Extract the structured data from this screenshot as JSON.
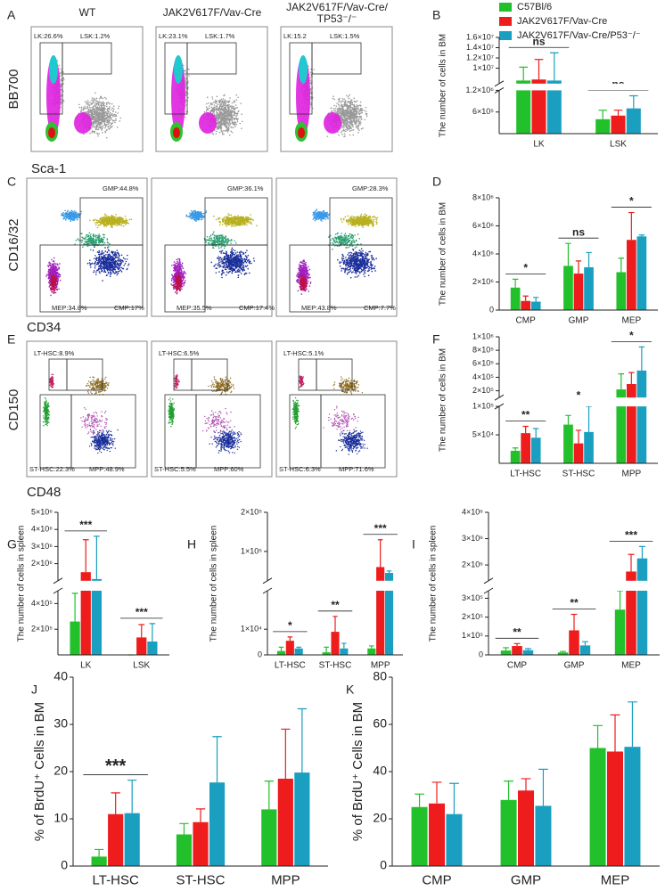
{
  "columns": [
    [
      "WT"
    ],
    [
      "JAK2V617F/Vav-Cre"
    ],
    [
      "JAK2V617F/Vav-Cre/",
      "TP53⁻/⁻"
    ]
  ],
  "groups": [
    {
      "name": "C57Bl/6",
      "color": "#22c02a"
    },
    {
      "name": "JAK2V617F/Vav-Cre",
      "color": "#ee1c1c"
    },
    {
      "name": "JAK2V617F/Vav-Cre/P53⁻/⁻",
      "color": "#1a9fc0"
    }
  ],
  "flow_rows": [
    {
      "panel": "A",
      "x_label": "Sca-1",
      "y_label": "BB700",
      "gates": [
        [
          "LK:26.6%",
          "LSK:1.2%"
        ],
        [
          "LK:23.1%",
          "LSK:1.7%"
        ],
        [
          "LK:15.2",
          "LSK:1.5%"
        ]
      ]
    },
    {
      "panel": "C",
      "x_label": "CD34",
      "y_label": "CD16/32",
      "gates": [
        [
          "GMP:44.8%",
          "MEP:34.8%",
          "CMP:17%"
        ],
        [
          "GMP:36.1%",
          "MEP:35.5%",
          "CMP:17.4%"
        ],
        [
          "GMP:28.3%",
          "MEP:43.8%",
          "CMP:7.7%"
        ]
      ]
    },
    {
      "panel": "E",
      "x_label": "CD48",
      "y_label": "CD150",
      "gates": [
        [
          "LT-HSC:8.9%",
          "ST-HSC:22.3%",
          "MPP:48.9%"
        ],
        [
          "LT-HSC:6.5%",
          "ST-HSC:5.5%",
          "MPP:60%"
        ],
        [
          "LT-HSC:5.1%",
          "ST-HSC:6.3%",
          "MPP:71.6%"
        ]
      ]
    }
  ],
  "chart_data": [
    {
      "type": "bar",
      "panel": "B",
      "y_label": "The number of cells in BM",
      "categories": [
        "LK",
        "LSK"
      ],
      "segments": [
        {
          "ylim": [
            0,
            1200000
          ],
          "yticks": [
            {
              "value": 600000,
              "label": "6×10⁵"
            },
            {
              "value": 1200000,
              "label": "1.2×10⁶"
            }
          ]
        },
        {
          "ylim": [
            7000000,
            16000000
          ],
          "yticks": [
            {
              "value": 10000000,
              "label": "1×10⁷"
            },
            {
              "value": 12000000,
              "label": "1.2×10⁷"
            },
            {
              "value": 14000000,
              "label": "1.4×10⁷"
            },
            {
              "value": 16000000,
              "label": "1.6×10⁷"
            }
          ]
        }
      ],
      "series": [
        {
          "values": [
            7600000,
            400000
          ],
          "errors": [
            2600000,
            250000
          ]
        },
        {
          "values": [
            7800000,
            500000
          ],
          "errors": [
            3900000,
            150000
          ]
        },
        {
          "values": [
            7600000,
            700000
          ],
          "errors": [
            5400000,
            350000
          ]
        }
      ],
      "significance": [
        "ns",
        "ns"
      ]
    },
    {
      "type": "bar",
      "panel": "D",
      "y_label": "The number of cells in BM",
      "categories": [
        "CMP",
        "GMP",
        "MEP"
      ],
      "ylim": [
        0,
        8000000
      ],
      "yticks": [
        0,
        {
          "value": 2000000,
          "label": "2×10⁶"
        },
        {
          "value": 4000000,
          "label": "4×10⁶"
        },
        {
          "value": 6000000,
          "label": "6×10⁶"
        },
        {
          "value": 8000000,
          "label": "8×10⁶"
        }
      ],
      "series": [
        {
          "values": [
            1600000,
            3150000,
            2700000
          ],
          "errors": [
            600000,
            1600000,
            1000000
          ]
        },
        {
          "values": [
            650000,
            2600000,
            5000000
          ],
          "errors": [
            350000,
            900000,
            1950000
          ]
        },
        {
          "values": [
            600000,
            3050000,
            5250000
          ],
          "errors": [
            300000,
            1050000,
            100000
          ]
        }
      ],
      "significance": [
        "*",
        "ns",
        "*"
      ]
    },
    {
      "type": "bar",
      "panel": "F",
      "y_label": "The number of cells in BM",
      "categories": [
        "LT-HSC",
        "ST-HSC",
        "MPP"
      ],
      "segments": [
        {
          "ylim": [
            0,
            100000
          ],
          "yticks": [
            {
              "value": 50000,
              "label": "5×10⁴"
            },
            {
              "value": 100000,
              "label": "1×10⁵"
            }
          ]
        },
        {
          "ylim": [
            100000,
            1000000
          ],
          "yticks": [
            {
              "value": 200000,
              "label": "2×10⁵"
            },
            {
              "value": 400000,
              "label": "4×10⁵"
            },
            {
              "value": 600000,
              "label": "6×10⁵"
            },
            {
              "value": 800000,
              "label": "8×10⁵"
            },
            {
              "value": 1000000,
              "label": "1×10⁶"
            }
          ]
        }
      ],
      "series": [
        {
          "values": [
            22000,
            68000,
            220000
          ],
          "errors": [
            5000,
            16000,
            230000
          ]
        },
        {
          "values": [
            53000,
            35000,
            300000
          ],
          "errors": [
            12000,
            23000,
            170000
          ]
        },
        {
          "values": [
            45000,
            55000,
            500000
          ],
          "errors": [
            16000,
            45000,
            350000
          ]
        }
      ],
      "significance": [
        "**",
        "*",
        "*"
      ]
    },
    {
      "type": "bar",
      "panel": "G",
      "y_label": "The number of cells in spleen",
      "categories": [
        "LK",
        "LSK"
      ],
      "segments": [
        {
          "ylim": [
            0,
            500000
          ],
          "yticks": [
            {
              "value": 200000,
              "label": "2×10⁵"
            },
            {
              "value": 400000,
              "label": "4×10⁵"
            }
          ]
        },
        {
          "ylim": [
            1000000,
            5000000
          ],
          "yticks": [
            {
              "value": 2000000,
              "label": "2×10⁶"
            },
            {
              "value": 3000000,
              "label": "3×10⁶"
            },
            {
              "value": 4000000,
              "label": "4×10⁶"
            },
            {
              "value": 5000000,
              "label": "5×10⁶"
            }
          ]
        }
      ],
      "series": [
        {
          "values": [
            260000,
            0
          ],
          "errors": [
            220000,
            0
          ]
        },
        {
          "values": [
            1500000,
            136000
          ],
          "errors": [
            1900000,
            100000
          ]
        },
        {
          "values": [
            1100000,
            104000
          ],
          "errors": [
            2500000,
            140000
          ]
        }
      ],
      "significance": [
        "***",
        "***"
      ]
    },
    {
      "type": "bar",
      "panel": "H",
      "y_label": "The number of cells in spleen",
      "categories": [
        "LT-HSC",
        "ST-HSC",
        "MPP"
      ],
      "segments": [
        {
          "ylim": [
            0,
            25000
          ],
          "yticks": [
            0,
            {
              "value": 10000,
              "label": "1×10⁴"
            }
          ]
        },
        {
          "ylim": [
            25000,
            200000
          ],
          "yticks": [
            {
              "value": 100000,
              "label": "1×10⁵"
            },
            {
              "value": 200000,
              "label": "2×10⁵"
            }
          ]
        }
      ],
      "series": [
        {
          "values": [
            1500,
            1000,
            2500
          ],
          "errors": [
            1500,
            2000,
            1000
          ]
        },
        {
          "values": [
            5500,
            9000,
            60000
          ],
          "errors": [
            1500,
            6000,
            70000
          ]
        },
        {
          "values": [
            2500,
            2500,
            45000
          ],
          "errors": [
            500,
            2000,
            5000
          ]
        }
      ],
      "significance": [
        "*",
        "**",
        "***"
      ]
    },
    {
      "type": "bar",
      "panel": "I",
      "y_label": "The number of cells in spleen",
      "categories": [
        "CMP",
        "GMP",
        "MEP"
      ],
      "segments": [
        {
          "ylim": [
            0,
            340000
          ],
          "yticks": [
            0,
            {
              "value": 100000,
              "label": "1×10⁵"
            },
            {
              "value": 200000,
              "label": "2×10⁵"
            },
            {
              "value": 300000,
              "label": "3×10⁵"
            }
          ]
        },
        {
          "ylim": [
            1400000,
            4000000
          ],
          "yticks": [
            {
              "value": 2000000,
              "label": "2×10⁶"
            },
            {
              "value": 3000000,
              "label": "3×10⁶"
            },
            {
              "value": 4000000,
              "label": "4×10⁶"
            }
          ]
        }
      ],
      "series": [
        {
          "values": [
            23000,
            13000,
            240000
          ],
          "errors": [
            15000,
            5000,
            100000
          ]
        },
        {
          "values": [
            47000,
            130000,
            1750000
          ],
          "errors": [
            13000,
            85000,
            650000
          ]
        },
        {
          "values": [
            25000,
            50000,
            2250000
          ],
          "errors": [
            8000,
            20000,
            450000
          ]
        }
      ],
      "significance": [
        "**",
        "**",
        "***"
      ]
    },
    {
      "type": "bar",
      "panel": "J",
      "y_label": "% of BrdU⁺ Cells in BM",
      "categories": [
        "LT-HSC",
        "ST-HSC",
        "MPP"
      ],
      "ylim": [
        0,
        40
      ],
      "yticks": [
        0,
        10,
        20,
        30,
        40
      ],
      "series": [
        {
          "values": [
            2,
            6.7,
            12
          ],
          "errors": [
            1.5,
            2.3,
            6
          ]
        },
        {
          "values": [
            11,
            9.3,
            18.5
          ],
          "errors": [
            4.5,
            2.8,
            10.5
          ]
        },
        {
          "values": [
            11.2,
            17.7,
            19.8
          ],
          "errors": [
            7,
            9.7,
            13.5
          ]
        }
      ],
      "significance": [
        "***",
        null,
        null
      ]
    },
    {
      "type": "bar",
      "panel": "K",
      "y_label": "% of BrdU⁺ Cells in BM",
      "categories": [
        "CMP",
        "GMP",
        "MEP"
      ],
      "ylim": [
        0,
        80
      ],
      "yticks": [
        0,
        20,
        40,
        60,
        80
      ],
      "series": [
        {
          "values": [
            25,
            28,
            50
          ],
          "errors": [
            5.5,
            8,
            9.5
          ]
        },
        {
          "values": [
            26.5,
            32,
            48.5
          ],
          "errors": [
            9,
            5,
            15.5
          ]
        },
        {
          "values": [
            22,
            25.5,
            50.5
          ],
          "errors": [
            13,
            15.5,
            19
          ]
        }
      ],
      "significance": [
        null,
        null,
        null
      ]
    }
  ]
}
